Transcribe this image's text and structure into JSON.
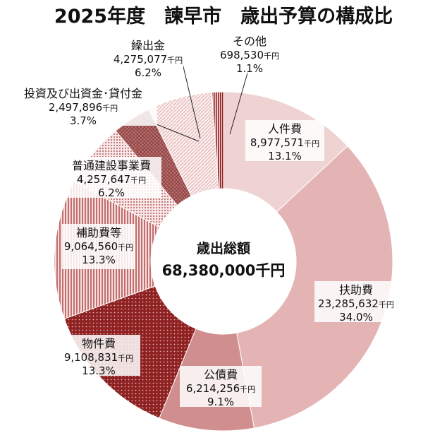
{
  "title": "2025年度　諫早市　歳出予算の構成比",
  "chart_data": {
    "type": "pie",
    "center": {
      "title": "歳出総額",
      "total": "68,380,000千円"
    },
    "slices": [
      {
        "name": "人件費",
        "amount": "8,977,571",
        "unit": "千円",
        "pct": "13.1%",
        "value": 13.1,
        "color": "#efd3d3",
        "pattern": "solid"
      },
      {
        "name": "扶助費",
        "amount": "23,285,632",
        "unit": "千円",
        "pct": "34.0%",
        "value": 34.0,
        "color": "#e4b3b3",
        "pattern": "solid"
      },
      {
        "name": "公債費",
        "amount": "6,214,256",
        "unit": "千円",
        "pct": "9.1%",
        "value": 9.1,
        "color": "#d18e8e",
        "pattern": "solid"
      },
      {
        "name": "物件費",
        "amount": "9,108,831",
        "unit": "千円",
        "pct": "13.3%",
        "value": 13.3,
        "color": "#8e2121",
        "pattern": "dots-light"
      },
      {
        "name": "補助費等",
        "amount": "9,064,560",
        "unit": "千円",
        "pct": "13.3%",
        "value": 13.3,
        "color": "#c98080",
        "pattern": "vlines"
      },
      {
        "name": "普通建設事業費",
        "amount": "4,257,647",
        "unit": "千円",
        "pct": "6.2%",
        "value": 6.2,
        "color": "#c07a7a",
        "pattern": "dots"
      },
      {
        "name": "投資及び出資金･貸付金",
        "amount": "2,497,896",
        "unit": "千円",
        "pct": "3.7%",
        "value": 3.7,
        "color": "#a86060",
        "pattern": "crosshatch"
      },
      {
        "name": "繰出金",
        "amount": "4,275,077",
        "unit": "千円",
        "pct": "6.2%",
        "value": 6.2,
        "color": "#eab8b8",
        "pattern": "diag"
      },
      {
        "name": "その他",
        "amount": "698,530",
        "unit": "千円",
        "pct": "1.1%",
        "value": 1.1,
        "color": "#9c3030",
        "pattern": "stripes-fine"
      }
    ]
  }
}
